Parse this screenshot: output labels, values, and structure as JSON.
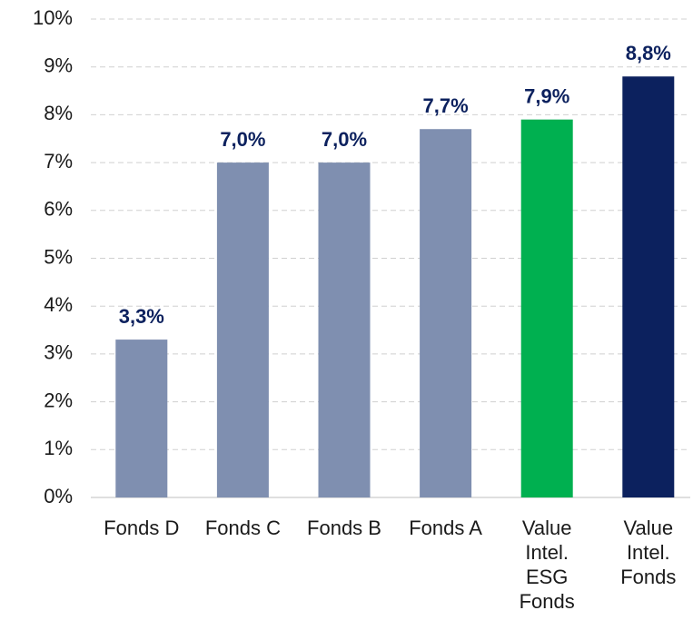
{
  "chart_data": {
    "type": "bar",
    "categories": [
      "Fonds D",
      "Fonds C",
      "Fonds B",
      "Fonds A",
      "Value Intel. ESG Fonds",
      "Value Intel. Fonds"
    ],
    "values": [
      3.3,
      7.0,
      7.0,
      7.7,
      7.9,
      8.8
    ],
    "value_labels": [
      "3,3%",
      "7,0%",
      "7,0%",
      "7,7%",
      "7,9%",
      "8,8%"
    ],
    "colors": [
      "#7f8fb0",
      "#7f8fb0",
      "#7f8fb0",
      "#7f8fb0",
      "#00b050",
      "#0c215e"
    ],
    "ylim": [
      0,
      10
    ],
    "yticks": [
      {
        "value": 0,
        "label": "0%"
      },
      {
        "value": 1,
        "label": "1%"
      },
      {
        "value": 2,
        "label": "2%"
      },
      {
        "value": 3,
        "label": "3%"
      },
      {
        "value": 4,
        "label": "4%"
      },
      {
        "value": 5,
        "label": "5%"
      },
      {
        "value": 6,
        "label": "6%"
      },
      {
        "value": 7,
        "label": "7%"
      },
      {
        "value": 8,
        "label": "8%"
      },
      {
        "value": 9,
        "label": "9%"
      },
      {
        "value": 10,
        "label": "10%"
      }
    ],
    "grid": true
  }
}
